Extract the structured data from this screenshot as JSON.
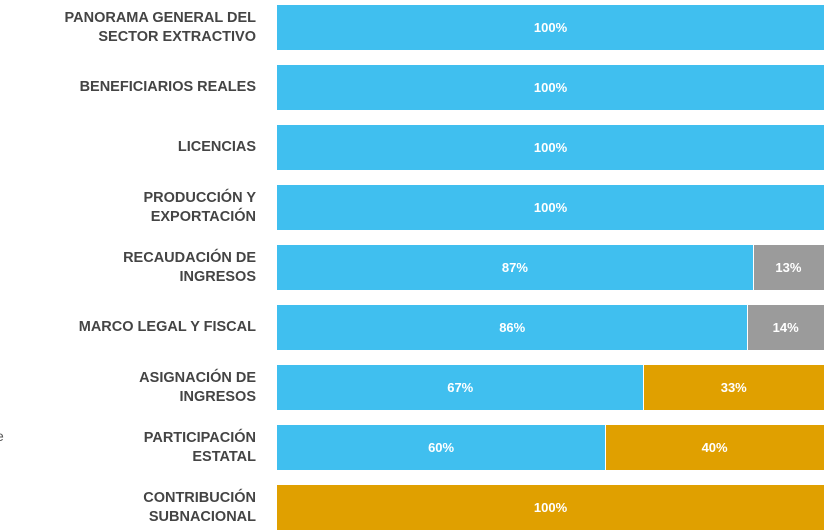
{
  "chart_data": {
    "type": "stacked-barh",
    "categories": [
      "PANORAMA GENERAL DEL\nSECTOR EXTRACTIVO",
      "BENEFICIARIOS REALES",
      "LICENCIAS",
      "PRODUCCIÓN Y\nEXPORTACIÓN",
      "RECAUDACIÓN DE\nINGRESOS",
      "MARCO LEGAL Y FISCAL",
      "ASIGNACIÓN DE\nINGRESOS",
      "PARTICIPACIÓN\nESTATAL",
      "CONTRIBUCIÓN\nSUBNACIONAL"
    ],
    "series": [
      {
        "color": "#40bfef",
        "values": [
          100,
          100,
          100,
          100,
          87,
          86,
          67,
          60,
          null
        ],
        "value_labels": [
          "100%",
          "100%",
          "100%",
          "100%",
          "87%",
          "86%",
          "67%",
          "60%",
          null
        ]
      },
      {
        "color": "#9b9b9b",
        "values": [
          null,
          null,
          null,
          null,
          13,
          14,
          null,
          null,
          null
        ],
        "value_labels": [
          null,
          null,
          null,
          null,
          "13%",
          "14%",
          null,
          null,
          null
        ]
      },
      {
        "color": "#e0a000",
        "values": [
          null,
          null,
          null,
          null,
          null,
          null,
          33,
          40,
          100
        ],
        "value_labels": [
          null,
          null,
          null,
          null,
          null,
          null,
          "33%",
          "40%",
          "100%"
        ]
      }
    ],
    "xlim": [
      0,
      100
    ],
    "annotation": "e"
  }
}
